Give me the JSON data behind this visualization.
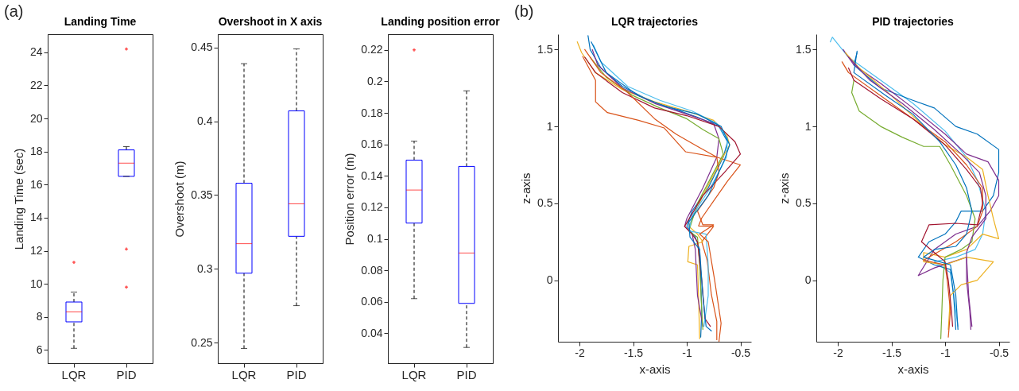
{
  "chart_data": [
    {
      "type": "box",
      "title": "Landing Time",
      "ylabel": "Landing Time (sec)",
      "annotations": [
        "(a)"
      ],
      "categories": [
        "LQR",
        "PID"
      ],
      "ylim": [
        5.2,
        25.1
      ],
      "yticks": [
        6,
        8,
        10,
        12,
        14,
        16,
        18,
        20,
        22,
        24
      ],
      "series": [
        {
          "color": "#0000ff",
          "boxes": [
            {
              "low": 6.1,
              "q1": 7.7,
              "median": 8.3,
              "q3": 8.9,
              "high": 9.5,
              "outliers": [
                11.3
              ]
            },
            {
              "low": 16.5,
              "q1": 16.5,
              "median": 17.3,
              "q3": 18.1,
              "high": 18.3,
              "outliers": [
                24.2,
                12.1,
                9.8
              ]
            }
          ]
        }
      ]
    },
    {
      "type": "box",
      "title": "Overshoot in X axis",
      "ylabel": "Overshoot (m)",
      "categories": [
        "LQR",
        "PID"
      ],
      "ylim": [
        0.236,
        0.459
      ],
      "yticks": [
        0.25,
        0.3,
        0.35,
        0.4,
        0.45
      ],
      "series": [
        {
          "color": "#0000ff",
          "boxes": [
            {
              "low": 0.246,
              "q1": 0.297,
              "median": 0.317,
              "q3": 0.358,
              "high": 0.439
            },
            {
              "low": 0.275,
              "q1": 0.322,
              "median": 0.344,
              "q3": 0.407,
              "high": 0.449
            }
          ]
        }
      ]
    },
    {
      "type": "box",
      "title": "Landing position error",
      "ylabel": "Position error (m)",
      "categories": [
        "LQR",
        "PID"
      ],
      "ylim": [
        0.021,
        0.23
      ],
      "yticks": [
        0.04,
        0.06,
        0.08,
        0.1,
        0.12,
        0.14,
        0.16,
        0.18,
        0.2,
        0.22
      ],
      "series": [
        {
          "color": "#0000ff",
          "boxes": [
            {
              "low": 0.062,
              "q1": 0.11,
              "median": 0.131,
              "q3": 0.15,
              "high": 0.162,
              "outliers": [
                0.22
              ]
            },
            {
              "low": 0.031,
              "q1": 0.059,
              "median": 0.091,
              "q3": 0.146,
              "high": 0.194
            }
          ]
        }
      ]
    },
    {
      "type": "line",
      "title": "LQR trajectories",
      "xlabel": "x-axis",
      "ylabel": "z-axis",
      "annotations": [
        "(b)"
      ],
      "xlim": [
        -2.2,
        -0.4
      ],
      "ylim": [
        -0.4,
        1.6
      ],
      "xticks": [
        -2,
        -1.5,
        -1,
        -0.5
      ],
      "yticks": [
        0,
        0.5,
        1,
        1.5
      ],
      "series": [
        {
          "color": "#0072bd",
          "x": [
            -1.92,
            -1.9,
            -1.8,
            -1.6,
            -1.35,
            -1.1,
            -0.9,
            -0.7,
            -0.62,
            -0.66,
            -0.8,
            -0.95,
            -1.0,
            -0.92,
            -0.88,
            -0.87,
            -0.86,
            -0.87
          ],
          "values": [
            1.59,
            1.5,
            1.38,
            1.26,
            1.17,
            1.11,
            1.06,
            1.0,
            0.9,
            0.8,
            0.6,
            0.45,
            0.35,
            0.28,
            0.2,
            0.0,
            -0.2,
            -0.37
          ]
        },
        {
          "color": "#d95319",
          "x": [
            -1.97,
            -1.85,
            -1.85,
            -1.74,
            -1.45,
            -1.21,
            -1.01,
            -0.72,
            -0.5,
            -0.62,
            -0.86,
            -0.89,
            -0.75,
            -0.86,
            -0.81,
            -0.77,
            -0.72,
            -0.72
          ],
          "values": [
            1.455,
            1.3,
            1.16,
            1.09,
            1.04,
            0.99,
            0.835,
            0.8,
            0.75,
            0.645,
            0.405,
            0.353,
            0.35,
            0.25,
            0.13,
            -0.095,
            -0.267,
            -0.387
          ]
        },
        {
          "color": "#edb120",
          "x": [
            -2.02,
            -1.98,
            -1.85,
            -1.6,
            -1.3,
            -1.0,
            -0.75,
            -0.63,
            -0.6,
            -0.68,
            -0.85,
            -0.98,
            -0.9,
            -0.85,
            -0.98,
            -0.99,
            -0.9,
            -0.89,
            -0.88
          ],
          "values": [
            1.55,
            1.48,
            1.35,
            1.24,
            1.16,
            1.1,
            1.04,
            0.95,
            0.88,
            0.78,
            0.55,
            0.35,
            0.3,
            0.25,
            0.22,
            0.12,
            0.1,
            -0.1,
            -0.38
          ]
        },
        {
          "color": "#7e2f8e",
          "x": [
            -1.88,
            -1.83,
            -1.6,
            -1.3,
            -1.0,
            -0.75,
            -0.7,
            -0.72,
            -0.85,
            -1.0,
            -1.02,
            -0.95,
            -0.92,
            -0.9,
            -0.85
          ],
          "values": [
            1.5,
            1.4,
            1.25,
            1.15,
            1.08,
            1.02,
            0.92,
            0.8,
            0.6,
            0.4,
            0.35,
            0.3,
            0.2,
            -0.1,
            -0.3
          ]
        },
        {
          "color": "#77ac30",
          "x": [
            -1.9,
            -1.75,
            -1.5,
            -1.25,
            -1.0,
            -0.85,
            -0.7,
            -0.66,
            -0.75,
            -0.9,
            -0.98,
            -0.9,
            -0.88,
            -0.86,
            -0.85
          ],
          "values": [
            1.45,
            1.32,
            1.2,
            1.12,
            1.05,
            0.98,
            0.92,
            0.82,
            0.7,
            0.5,
            0.32,
            0.28,
            0.1,
            -0.2,
            -0.32
          ]
        },
        {
          "color": "#4dbeee",
          "x": [
            -1.87,
            -1.8,
            -1.55,
            -1.25,
            -0.95,
            -0.72,
            -0.62,
            -0.63,
            -0.78,
            -0.95,
            -0.98,
            -0.82,
            -0.8,
            -0.8,
            -0.84
          ],
          "values": [
            1.53,
            1.42,
            1.26,
            1.17,
            1.1,
            1.02,
            0.92,
            0.8,
            0.6,
            0.42,
            0.32,
            0.3,
            0.1,
            -0.1,
            -0.3
          ]
        },
        {
          "color": "#a2142f",
          "x": [
            -1.95,
            -1.85,
            -1.6,
            -1.3,
            -1.0,
            -0.7,
            -0.55,
            -0.5,
            -0.65,
            -0.85,
            -1.02,
            -0.95,
            -0.9,
            -0.86,
            -0.83,
            -0.78
          ],
          "values": [
            1.45,
            1.35,
            1.22,
            1.12,
            1.07,
            1.0,
            0.9,
            0.82,
            0.7,
            0.55,
            0.35,
            0.3,
            0.25,
            0.0,
            -0.25,
            -0.3
          ]
        },
        {
          "color": "#d95319",
          "x": [
            -1.95,
            -1.8,
            -1.55,
            -1.3,
            -1.1,
            -0.9,
            -0.72,
            -0.7,
            -0.75,
            -0.9,
            -0.85,
            -0.75,
            -0.88,
            -0.8,
            -0.74,
            -0.68,
            -0.7
          ],
          "values": [
            1.5,
            1.35,
            1.22,
            1.05,
            0.95,
            0.87,
            0.8,
            0.7,
            0.6,
            0.45,
            0.36,
            0.36,
            0.3,
            0.25,
            0.0,
            -0.28,
            -0.4
          ]
        },
        {
          "color": "#0072bd",
          "x": [
            -1.89,
            -1.75,
            -1.45,
            -1.2,
            -0.9,
            -0.68,
            -0.6,
            -0.65,
            -0.8,
            -0.98,
            -0.97,
            -0.88,
            -0.85,
            -0.82,
            -0.77
          ],
          "values": [
            1.55,
            1.35,
            1.2,
            1.13,
            1.08,
            1.0,
            0.88,
            0.78,
            0.55,
            0.38,
            0.28,
            0.2,
            -0.1,
            -0.3,
            -0.33
          ]
        }
      ]
    },
    {
      "type": "line",
      "title": "PID trajectories",
      "xlabel": "x-axis",
      "ylabel": "z-axis",
      "xlim": [
        -2.2,
        -0.4
      ],
      "ylim": [
        -0.4,
        1.6
      ],
      "xticks": [
        -2,
        -1.5,
        -1,
        -0.5
      ],
      "yticks": [
        0,
        0.5,
        1,
        1.5
      ],
      "series": [
        {
          "color": "#4dbeee",
          "x": [
            -2.07,
            -2.05,
            -1.9,
            -1.6,
            -1.3,
            -1.0,
            -0.8,
            -0.7,
            -0.62,
            -0.65,
            -0.72,
            -0.9,
            -1.1,
            -0.95,
            -0.92,
            -0.88
          ],
          "values": [
            1.55,
            1.58,
            1.45,
            1.3,
            1.15,
            0.97,
            0.8,
            0.65,
            0.45,
            0.3,
            0.2,
            0.15,
            0.12,
            0.05,
            -0.1,
            -0.3
          ]
        },
        {
          "color": "#0072bd",
          "x": [
            -1.82,
            -1.85,
            -1.6,
            -1.3,
            -1.1,
            -0.9,
            -0.7,
            -0.5,
            -0.5,
            -0.55,
            -0.65,
            -0.85,
            -0.9,
            -1.0,
            -1.15,
            -1.25,
            -1.1,
            -0.95,
            -0.92,
            -0.9
          ],
          "values": [
            1.48,
            1.4,
            1.25,
            1.17,
            1.12,
            1.0,
            0.95,
            0.85,
            0.7,
            0.55,
            0.45,
            0.45,
            0.38,
            0.3,
            0.25,
            0.15,
            0.1,
            0.07,
            -0.1,
            -0.32
          ]
        },
        {
          "color": "#7e2f8e",
          "x": [
            -1.95,
            -1.85,
            -1.6,
            -1.3,
            -1.0,
            -0.8,
            -0.6,
            -0.5,
            -0.5,
            -0.58,
            -0.7,
            -0.9,
            -1.1,
            -1.25,
            -1.1,
            -0.8,
            -0.78,
            -0.75
          ],
          "values": [
            1.5,
            1.4,
            1.28,
            1.12,
            0.95,
            0.82,
            0.77,
            0.65,
            0.55,
            0.45,
            0.35,
            0.3,
            0.2,
            0.03,
            0.08,
            0.15,
            -0.1,
            -0.3
          ]
        },
        {
          "color": "#edb120",
          "x": [
            -1.93,
            -1.8,
            -1.5,
            -1.2,
            -1.0,
            -0.8,
            -0.65,
            -0.6,
            -0.55,
            -0.5,
            -0.65,
            -0.8,
            -1.0,
            -1.2,
            -1.2,
            -1.0,
            -0.8,
            -0.55,
            -0.7,
            -0.85,
            -0.95,
            -0.97
          ],
          "values": [
            1.48,
            1.38,
            1.2,
            1.0,
            0.88,
            0.8,
            0.72,
            0.55,
            0.4,
            0.27,
            0.3,
            0.2,
            0.15,
            0.18,
            0.12,
            0.1,
            0.15,
            0.12,
            0.0,
            -0.03,
            -0.1,
            -0.32
          ]
        },
        {
          "color": "#d95319",
          "x": [
            -1.96,
            -1.9,
            -1.6,
            -1.3,
            -1.0,
            -0.8,
            -0.65,
            -0.65,
            -0.7,
            -0.9,
            -1.1,
            -1.2,
            -1.0,
            -0.98,
            -0.95,
            -0.97
          ],
          "values": [
            1.42,
            1.35,
            1.2,
            1.05,
            0.9,
            0.75,
            0.6,
            0.45,
            0.35,
            0.25,
            0.17,
            0.13,
            0.1,
            0.0,
            -0.2,
            -0.37
          ]
        },
        {
          "color": "#77ac30",
          "x": [
            -1.85,
            -1.87,
            -1.8,
            -1.6,
            -1.4,
            -1.2,
            -1.05,
            -0.95,
            -0.8,
            -0.72,
            -0.75,
            -0.85,
            -1.0,
            -1.02,
            -1.03,
            -1.04
          ],
          "values": [
            1.3,
            1.22,
            1.1,
            1.0,
            0.93,
            0.87,
            0.87,
            0.75,
            0.55,
            0.4,
            0.25,
            0.2,
            0.15,
            0.0,
            -0.2,
            -0.38
          ]
        },
        {
          "color": "#a2142f",
          "x": [
            -1.9,
            -1.85,
            -1.6,
            -1.3,
            -1.0,
            -0.8,
            -0.67,
            -0.65,
            -0.7,
            -0.9,
            -1.15,
            -1.22,
            -1.1,
            -1.0,
            -0.97,
            -0.94,
            -0.93
          ],
          "values": [
            1.38,
            1.3,
            1.18,
            1.05,
            0.88,
            0.72,
            0.6,
            0.5,
            0.36,
            0.37,
            0.36,
            0.25,
            0.18,
            0.12,
            0.0,
            -0.2,
            -0.3
          ]
        },
        {
          "color": "#0072bd",
          "x": [
            -1.82,
            -1.85,
            -1.55,
            -1.3,
            -1.05,
            -0.9,
            -0.8,
            -0.75,
            -0.8,
            -0.9,
            -1.1,
            -1.2,
            -1.05,
            -0.95,
            -0.9,
            -0.88
          ],
          "values": [
            1.49,
            1.35,
            1.2,
            1.08,
            0.9,
            0.75,
            0.6,
            0.45,
            0.3,
            0.22,
            0.2,
            0.15,
            0.12,
            0.1,
            -0.1,
            -0.32
          ]
        },
        {
          "color": "#7e2f8e",
          "x": [
            -1.9,
            -1.7,
            -1.4,
            -1.1,
            -0.85,
            -0.68,
            -0.62,
            -0.62,
            -0.75,
            -0.8,
            -0.8,
            -0.77,
            -0.76
          ],
          "values": [
            1.45,
            1.3,
            1.15,
            0.98,
            0.82,
            0.7,
            0.55,
            0.4,
            0.28,
            0.18,
            0.0,
            -0.2,
            -0.32
          ]
        }
      ]
    }
  ]
}
